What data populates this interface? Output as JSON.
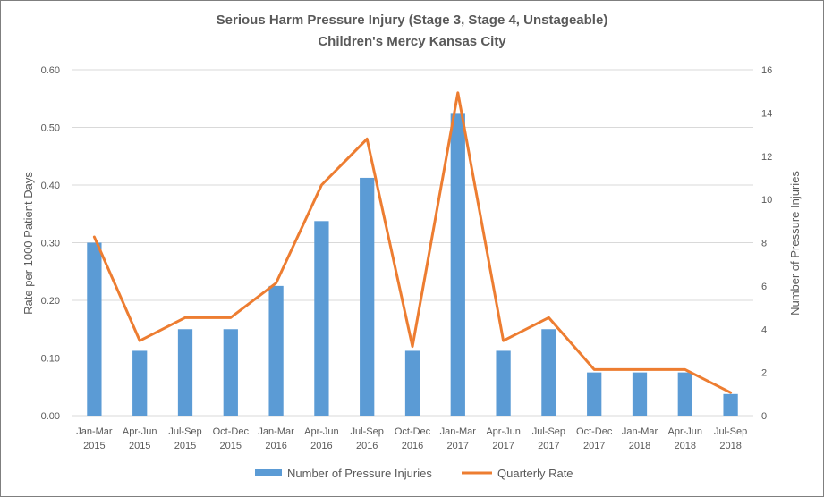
{
  "chart_data": {
    "type": "bar+line",
    "title": "Serious Harm Pressure Injury (Stage 3, Stage 4, Unstageable)",
    "subtitle": "Children's Mercy Kansas City",
    "categories": [
      [
        "Jan-Mar",
        "2015"
      ],
      [
        "Apr-Jun",
        "2015"
      ],
      [
        "Jul-Sep",
        "2015"
      ],
      [
        "Oct-Dec",
        "2015"
      ],
      [
        "Jan-Mar",
        "2016"
      ],
      [
        "Apr-Jun",
        "2016"
      ],
      [
        "Jul-Sep",
        "2016"
      ],
      [
        "Oct-Dec",
        "2016"
      ],
      [
        "Jan-Mar",
        "2017"
      ],
      [
        "Apr-Jun",
        "2017"
      ],
      [
        "Jul-Sep",
        "2017"
      ],
      [
        "Oct-Dec",
        "2017"
      ],
      [
        "Jan-Mar",
        "2018"
      ],
      [
        "Apr-Jun",
        "2018"
      ],
      [
        "Jul-Sep",
        "2018"
      ]
    ],
    "series": [
      {
        "name": "Number of Pressure Injuries",
        "kind": "bar",
        "axis": "right",
        "color": "#5b9bd5",
        "values": [
          8,
          3,
          4,
          4,
          6,
          9,
          11,
          3,
          14,
          3,
          4,
          2,
          2,
          2,
          1
        ]
      },
      {
        "name": "Quarterly Rate",
        "kind": "line",
        "axis": "left",
        "color": "#ed7d31",
        "values": [
          0.31,
          0.13,
          0.17,
          0.17,
          0.23,
          0.4,
          0.48,
          0.12,
          0.56,
          0.13,
          0.17,
          0.08,
          0.08,
          0.08,
          0.04
        ]
      }
    ],
    "ylabel": "Rate per 1000 Patient Days",
    "y2label": "Number of Pressure Injuries",
    "ylim": [
      0,
      0.6
    ],
    "y2lim": [
      0,
      16
    ],
    "yticks": [
      "0.00",
      "0.10",
      "0.20",
      "0.30",
      "0.40",
      "0.50",
      "0.60"
    ],
    "y2ticks": [
      "0",
      "2",
      "4",
      "6",
      "8",
      "10",
      "12",
      "14",
      "16"
    ],
    "grid": true,
    "legend_position": "bottom"
  }
}
